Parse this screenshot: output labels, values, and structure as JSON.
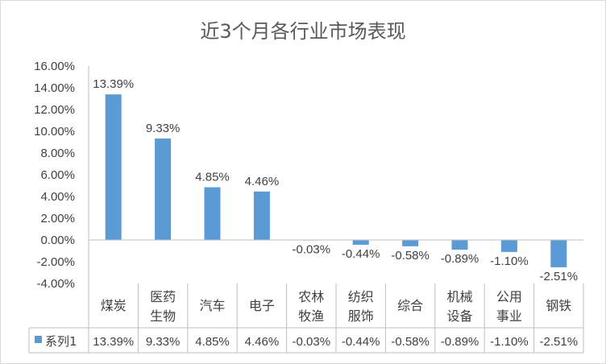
{
  "chart_data": {
    "type": "bar",
    "title": "近3个月各行业市场表现",
    "categories": [
      [
        "煤炭"
      ],
      [
        "医药",
        "生物"
      ],
      [
        "汽车"
      ],
      [
        "电子"
      ],
      [
        "农林",
        "牧渔"
      ],
      [
        "纺织",
        "服饰"
      ],
      [
        "综合"
      ],
      [
        "机械",
        "设备"
      ],
      [
        "公用",
        "事业"
      ],
      [
        "钢铁"
      ]
    ],
    "series": [
      {
        "name": "系列1",
        "values": [
          13.39,
          9.33,
          4.85,
          4.46,
          -0.03,
          -0.44,
          -0.58,
          -0.89,
          -1.1,
          -2.51
        ],
        "labels": [
          "13.39%",
          "9.33%",
          "4.85%",
          "4.46%",
          "-0.03%",
          "-0.44%",
          "-0.58%",
          "-0.89%",
          "-1.10%",
          "-2.51%"
        ]
      }
    ],
    "y_ticks": [
      "16.00%",
      "14.00%",
      "12.00%",
      "10.00%",
      "8.00%",
      "6.00%",
      "4.00%",
      "2.00%",
      "0.00%",
      "-2.00%",
      "-4.00%"
    ],
    "ylim": [
      -4,
      16
    ],
    "grid": false,
    "data_table": true,
    "legend_position": "data-table",
    "bar_color": "#5b9bd5"
  }
}
